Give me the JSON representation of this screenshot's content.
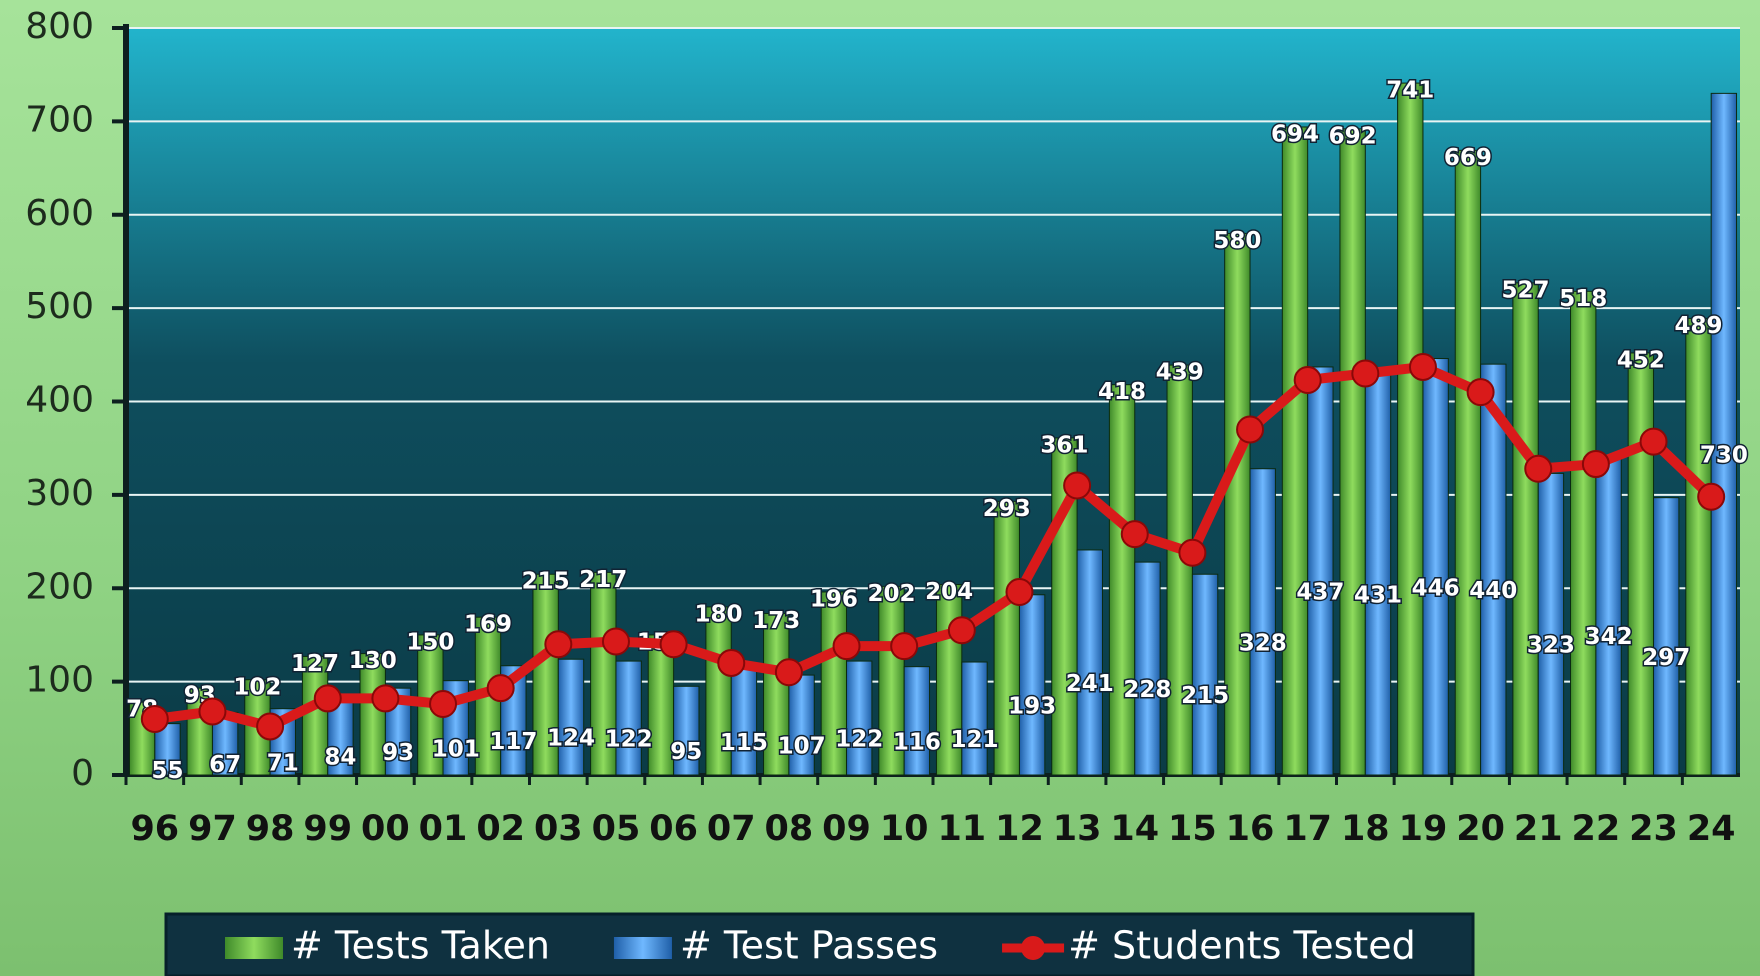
{
  "chart_data": {
    "type": "bar",
    "categories": [
      "96",
      "97",
      "98",
      "99",
      "00",
      "01",
      "02",
      "03",
      "05",
      "06",
      "07",
      "08",
      "09",
      "10",
      "11",
      "12",
      "13",
      "14",
      "15",
      "16",
      "17",
      "18",
      "19",
      "20",
      "21",
      "22",
      "23",
      "24"
    ],
    "series": [
      {
        "name": "# Tests Taken",
        "type": "bar",
        "color": "#5fae3c",
        "values": [
          78,
          93,
          102,
          127,
          130,
          150,
          169,
          215,
          217,
          150,
          180,
          173,
          196,
          202,
          204,
          293,
          361,
          418,
          439,
          580,
          694,
          692,
          741,
          669,
          527,
          518,
          452,
          489
        ]
      },
      {
        "name": "# Test Passes",
        "type": "bar",
        "color": "#3f8fd8",
        "values": [
          55,
          67,
          71,
          84,
          93,
          101,
          117,
          124,
          122,
          95,
          115,
          107,
          122,
          116,
          121,
          193,
          241,
          228,
          215,
          328,
          437,
          431,
          446,
          440,
          323,
          342,
          297,
          730
        ]
      },
      {
        "name": "# Students Tested",
        "type": "line",
        "color": "#d91a1a",
        "values": [
          60,
          68,
          52,
          82,
          82,
          76,
          93,
          140,
          143,
          140,
          120,
          110,
          138,
          138,
          155,
          196,
          310,
          258,
          238,
          370,
          423,
          430,
          437,
          410,
          328,
          333,
          357,
          298
        ]
      }
    ],
    "ylim": [
      0,
      800
    ],
    "yticks": [
      0,
      100,
      200,
      300,
      400,
      500,
      600,
      700,
      800
    ],
    "grid": true
  }
}
